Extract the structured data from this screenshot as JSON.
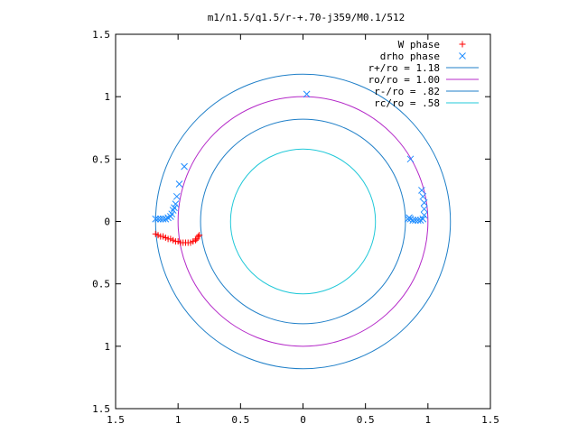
{
  "chart_data": {
    "type": "scatter",
    "title": "m1/n1.5/q1.5/r-+.70-j359/M0.1/512",
    "xlabel": "",
    "ylabel": "",
    "xlim": [
      -1.5,
      1.5
    ],
    "ylim": [
      -1.5,
      1.5
    ],
    "grid": false,
    "legend_position": "top-right",
    "x_ticks": [
      {
        "value": -1.5,
        "label": "1.5"
      },
      {
        "value": -1.0,
        "label": "1"
      },
      {
        "value": -0.5,
        "label": "0.5"
      },
      {
        "value": 0.0,
        "label": "0"
      },
      {
        "value": 0.5,
        "label": "0.5"
      },
      {
        "value": 1.0,
        "label": "1"
      },
      {
        "value": 1.5,
        "label": "1.5"
      }
    ],
    "y_ticks": [
      {
        "value": 1.5,
        "label": "1.5"
      },
      {
        "value": 1.0,
        "label": "1"
      },
      {
        "value": 0.5,
        "label": "0.5"
      },
      {
        "value": 0.0,
        "label": "0"
      },
      {
        "value": -0.5,
        "label": "0.5"
      },
      {
        "value": -1.0,
        "label": "1"
      },
      {
        "value": -1.5,
        "label": "1.5"
      }
    ],
    "circles": [
      {
        "name": "r+/ro = 1.18",
        "radius": 1.18,
        "color": "#1f7fc8"
      },
      {
        "name": "ro/ro = 1.00",
        "radius": 1.0,
        "color": "#b428c8"
      },
      {
        "name": "r-/ro = .82",
        "radius": 0.82,
        "color": "#1f7fc8"
      },
      {
        "name": "rc/ro = .58",
        "radius": 0.58,
        "color": "#20c8d8"
      }
    ],
    "series": [
      {
        "name": "W phase",
        "marker": "+",
        "color": "#ff0000",
        "points": [
          [
            -1.18,
            -0.1
          ],
          [
            -1.16,
            -0.11
          ],
          [
            -1.14,
            -0.12
          ],
          [
            -1.12,
            -0.12
          ],
          [
            -1.1,
            -0.13
          ],
          [
            -1.08,
            -0.14
          ],
          [
            -1.06,
            -0.14
          ],
          [
            -1.04,
            -0.15
          ],
          [
            -1.02,
            -0.16
          ],
          [
            -1.0,
            -0.16
          ],
          [
            -0.98,
            -0.17
          ],
          [
            -0.96,
            -0.17
          ],
          [
            -0.94,
            -0.17
          ],
          [
            -0.92,
            -0.17
          ],
          [
            -0.9,
            -0.17
          ],
          [
            -0.88,
            -0.16
          ],
          [
            -0.86,
            -0.15
          ],
          [
            -0.85,
            -0.14
          ],
          [
            -0.84,
            -0.12
          ],
          [
            -0.83,
            -0.11
          ]
        ]
      },
      {
        "name": "drho phase",
        "marker": "x",
        "color": "#1e8cff",
        "points": [
          [
            -1.18,
            0.02
          ],
          [
            -1.16,
            0.02
          ],
          [
            -1.14,
            0.02
          ],
          [
            -1.12,
            0.02
          ],
          [
            -1.1,
            0.02
          ],
          [
            -1.08,
            0.03
          ],
          [
            -1.06,
            0.04
          ],
          [
            -1.05,
            0.06
          ],
          [
            -1.04,
            0.09
          ],
          [
            -1.03,
            0.11
          ],
          [
            -1.02,
            0.14
          ],
          [
            -1.01,
            0.2
          ],
          [
            -0.99,
            0.3
          ],
          [
            -0.95,
            0.44
          ],
          [
            0.03,
            1.02
          ],
          [
            0.86,
            0.5
          ],
          [
            0.95,
            0.25
          ],
          [
            0.96,
            0.2
          ],
          [
            0.97,
            0.15
          ],
          [
            0.97,
            0.1
          ],
          [
            0.97,
            0.05
          ],
          [
            0.96,
            0.02
          ],
          [
            0.94,
            0.01
          ],
          [
            0.92,
            0.01
          ],
          [
            0.9,
            0.01
          ],
          [
            0.88,
            0.01
          ],
          [
            0.86,
            0.02
          ],
          [
            0.85,
            0.03
          ],
          [
            0.84,
            0.02
          ]
        ]
      }
    ]
  }
}
